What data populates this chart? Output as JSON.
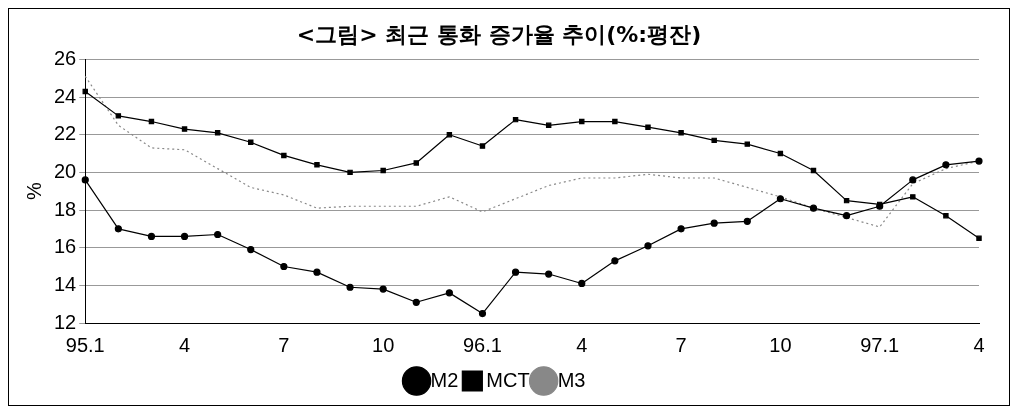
{
  "chart_data": {
    "type": "line",
    "title": "<그림> 최근 통화 증가율 추이(%:평잔)",
    "ylabel": "%",
    "categories": [
      "95.1",
      null,
      null,
      "4",
      null,
      null,
      "7",
      null,
      null,
      "10",
      null,
      null,
      "96.1",
      null,
      null,
      "4",
      null,
      null,
      "7",
      null,
      null,
      "10",
      null,
      null,
      "97.1",
      null,
      null,
      "4"
    ],
    "series": [
      {
        "name": "M2",
        "color": "#000000",
        "marker": "circle",
        "line_style": "solid",
        "values": [
          19.6,
          17.0,
          16.6,
          16.6,
          16.7,
          15.9,
          15.0,
          14.7,
          13.9,
          13.8,
          13.1,
          13.6,
          12.5,
          14.7,
          14.6,
          14.1,
          15.3,
          16.1,
          17.0,
          17.3,
          17.4,
          18.6,
          18.1,
          17.7,
          18.2,
          19.6,
          20.4,
          20.6
        ]
      },
      {
        "name": "MCT",
        "color": "#000000",
        "marker": "square",
        "line_style": "solid",
        "values": [
          24.3,
          23.0,
          22.7,
          22.3,
          22.1,
          21.6,
          20.9,
          20.4,
          20.0,
          20.1,
          20.5,
          22.0,
          21.4,
          22.8,
          22.5,
          22.7,
          22.7,
          22.4,
          22.1,
          21.7,
          21.5,
          21.0,
          20.1,
          18.5,
          18.3,
          18.7,
          17.7,
          16.5
        ]
      },
      {
        "name": "M3",
        "color": "#888888",
        "marker": "none",
        "line_style": "dotted",
        "values": [
          25.1,
          22.5,
          21.3,
          21.2,
          20.2,
          19.2,
          18.8,
          18.1,
          18.2,
          18.2,
          18.2,
          18.7,
          17.9,
          18.6,
          19.3,
          19.7,
          19.7,
          19.9,
          19.7,
          19.7,
          19.2,
          18.7,
          18.1,
          17.6,
          17.1,
          19.4,
          20.2,
          20.6
        ]
      }
    ],
    "ylim": [
      12,
      26
    ],
    "yticks": [
      12,
      14,
      16,
      18,
      20,
      22,
      24,
      26
    ],
    "grid": "y",
    "legend": "bottom"
  }
}
